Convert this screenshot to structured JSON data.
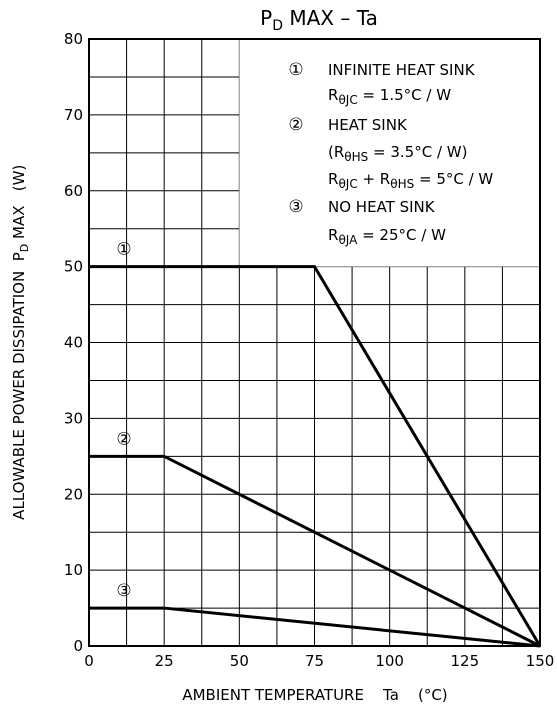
{
  "chart_data": {
    "type": "line",
    "title": {
      "main": "P",
      "sub": "D",
      "rest": " MAX  –  Ta"
    },
    "xlabel": "AMBIENT TEMPERATURE    Ta    (°C)",
    "ylabel": {
      "pre": "ALLOWABLE POWER DISSIPATION  P",
      "sub": "D",
      "post": " MAX   (W)"
    },
    "xlim": [
      0,
      150
    ],
    "ylim": [
      0,
      80
    ],
    "xticks": [
      0,
      25,
      50,
      75,
      100,
      125,
      150
    ],
    "yticks": [
      0,
      10,
      20,
      30,
      40,
      50,
      60,
      70,
      80
    ],
    "grid": true,
    "series": [
      {
        "name": "①",
        "x": [
          0,
          75,
          150
        ],
        "y": [
          50,
          50,
          0
        ]
      },
      {
        "name": "②",
        "x": [
          0,
          25,
          150
        ],
        "y": [
          25,
          25,
          0
        ]
      },
      {
        "name": "③",
        "x": [
          0,
          25,
          150
        ],
        "y": [
          5,
          5,
          0
        ]
      }
    ],
    "legend": {
      "placement": "top-right",
      "entries": [
        {
          "marker": "①",
          "label": "INFINITE HEAT SINK",
          "formula": [
            {
              "t": "R"
            },
            {
              "t": "θJC",
              "sub": true
            },
            {
              "t": " = 1.5°C / W"
            }
          ]
        },
        {
          "marker": "②",
          "label": "HEAT SINK",
          "formula": [
            {
              "t": "(R"
            },
            {
              "t": "θHS",
              "sub": true
            },
            {
              "t": " = 3.5°C / W)"
            }
          ],
          "formula2": [
            {
              "t": "R"
            },
            {
              "t": "θJC",
              "sub": true
            },
            {
              "t": " + R"
            },
            {
              "t": "θHS",
              "sub": true
            },
            {
              "t": " = 5°C / W"
            }
          ]
        },
        {
          "marker": "③",
          "label": "NO HEAT SINK",
          "formula": [
            {
              "t": "R"
            },
            {
              "t": "θJA",
              "sub": true
            },
            {
              "t": " = 25°C / W"
            }
          ]
        }
      ]
    }
  }
}
